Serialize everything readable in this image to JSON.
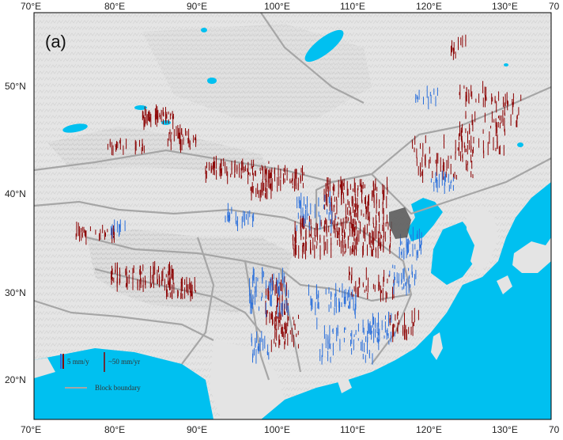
{
  "panel_label": "(a)",
  "lon_ticks_top": [
    "70°E",
    "80°E",
    "90°E",
    "100°E",
    "110°E",
    "120°E",
    "130°E",
    "70"
  ],
  "lon_ticks_bottom": [
    "70°E",
    "80°E",
    "90°E",
    "100°E",
    "110°E",
    "120°E",
    "130°E",
    "70"
  ],
  "lat_ticks": [
    "50°N",
    "40°N",
    "30°N",
    "20°N"
  ],
  "legend": {
    "scale_a": "5 mm/y",
    "scale_b": "~50 mm/yr",
    "boundary": "Block boundary"
  },
  "colors": {
    "sea": "#00c0f0",
    "land": "#e4e4e4",
    "uplift": "#8b0000",
    "subsidence": "#2a6fdb",
    "extreme": "#555555",
    "boundary": "#a6a6a6"
  }
}
